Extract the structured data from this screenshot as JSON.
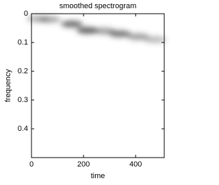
{
  "chart_data": {
    "type": "spectrogram",
    "title": "smoothed spectrogram",
    "xlabel": "time",
    "ylabel": "frequency",
    "x": [
      25,
      70,
      155,
      215,
      280,
      340,
      410,
      475
    ],
    "y": [
      0.018,
      0.02,
      0.036,
      0.058,
      0.06,
      0.07,
      0.08,
      0.09
    ],
    "intensity": [
      0.4,
      0.45,
      0.75,
      0.8,
      0.5,
      0.7,
      0.5,
      0.35
    ],
    "color": "#404040",
    "xlim": [
      0,
      510
    ],
    "xticks": [
      0,
      200,
      400
    ],
    "ylim": [
      0,
      0.5
    ],
    "yticks": [
      0,
      0.1,
      0.2,
      0.3,
      0.4
    ],
    "y_inverted": true
  }
}
